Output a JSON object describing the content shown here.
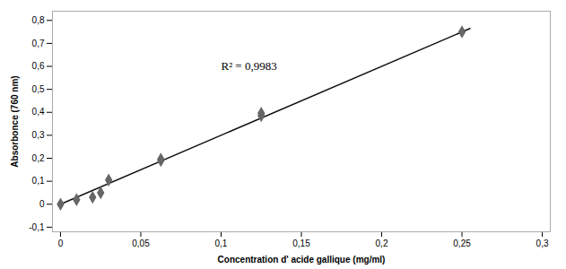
{
  "chart_data": {
    "type": "scatter",
    "xlabel": "Concentration d' acide gallique (mg/ml)",
    "ylabel": "Absorbonce (760 nm)",
    "x": [
      0,
      0.01,
      0.02,
      0.025,
      0.03,
      0.0625,
      0.0625,
      0.125,
      0.125,
      0.25
    ],
    "values": [
      0.0,
      0.02,
      0.03,
      0.05,
      0.105,
      0.19,
      0.196,
      0.385,
      0.396,
      0.75
    ],
    "color": "#666666",
    "marker": "diamond",
    "trendline": {
      "x": [
        0,
        0.255
      ],
      "values": [
        0.0,
        0.765
      ],
      "color": "#111111"
    },
    "annotations": [
      {
        "text": "R² = 0,9983",
        "x": 0.1,
        "y": 0.6
      }
    ],
    "xlim": [
      -0.005,
      0.305
    ],
    "ylim": [
      -0.12,
      0.84
    ],
    "xticks": [
      0,
      {
        "value": 0.05,
        "label": "0,05"
      },
      {
        "value": 0.1,
        "label": "0,1"
      },
      {
        "value": 0.15,
        "label": "0,15"
      },
      {
        "value": 0.2,
        "label": "0,2"
      },
      {
        "value": 0.25,
        "label": "0,25"
      },
      {
        "value": 0.3,
        "label": "0,3"
      }
    ],
    "yticks": [
      {
        "value": -0.1,
        "label": "-0,1"
      },
      0,
      {
        "value": 0.1,
        "label": "0,1"
      },
      {
        "value": 0.2,
        "label": "0,2"
      },
      {
        "value": 0.3,
        "label": "0,3"
      },
      {
        "value": 0.4,
        "label": "0,4"
      },
      {
        "value": 0.5,
        "label": "0,5"
      },
      {
        "value": 0.6,
        "label": "0,6"
      },
      {
        "value": 0.7,
        "label": "0,7"
      },
      {
        "value": 0.8,
        "label": "0,8"
      }
    ],
    "grid": false
  }
}
